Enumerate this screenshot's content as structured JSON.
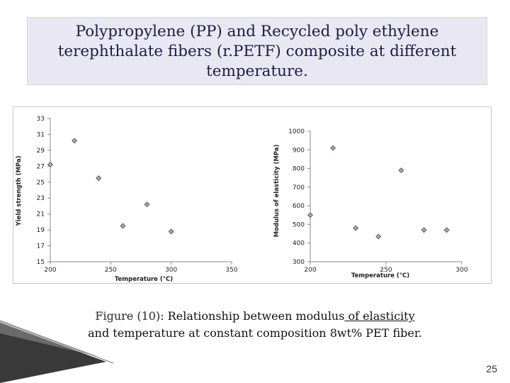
{
  "slide": {
    "title": "Polypropylene (PP) and Recycled poly ethylene\nterephthalate fibers (r.PETF) composite at different\ntemperature.",
    "caption_figure": "Figure (10):",
    "caption_text_1": " Relationship between modulus",
    "caption_text_ul": " of elasticity ",
    "caption_text_2": "and temperature at constant composition 8wt% PET fiber.",
    "page_number": "25"
  },
  "colors": {
    "title_bg": "#e9e8f2",
    "title_text": "#1e1b44",
    "marker": "#a8a8b8",
    "marker_stroke": "#44445a"
  },
  "chart_data": [
    {
      "type": "scatter",
      "xlabel": "Temperature (°C)",
      "ylabel": "Yield strength (MPa)",
      "xlim": [
        200,
        350
      ],
      "ylim": [
        15,
        33
      ],
      "xticks": [
        "200",
        "250",
        "300",
        "350"
      ],
      "yticks": [
        "33",
        "31",
        "29",
        "27",
        "25",
        "23",
        "21",
        "19",
        "17",
        "15"
      ],
      "grid": false,
      "x": [
        200,
        220,
        240,
        260,
        280,
        300
      ],
      "y": [
        27.2,
        30.2,
        25.5,
        19.5,
        22.2,
        18.8
      ]
    },
    {
      "type": "scatter",
      "xlabel": "Temperature (°C)",
      "ylabel": "Modulus of elasticity (MPa)",
      "xlim": [
        200,
        300
      ],
      "ylim": [
        300,
        1000
      ],
      "xticks": [
        "200",
        "250",
        "300"
      ],
      "yticks": [
        "1000",
        "900",
        "800",
        "700",
        "600",
        "500",
        "400",
        "300"
      ],
      "grid": false,
      "x": [
        200,
        215,
        230,
        245,
        260,
        275,
        290
      ],
      "y": [
        550,
        910,
        480,
        435,
        790,
        470,
        470
      ]
    }
  ]
}
